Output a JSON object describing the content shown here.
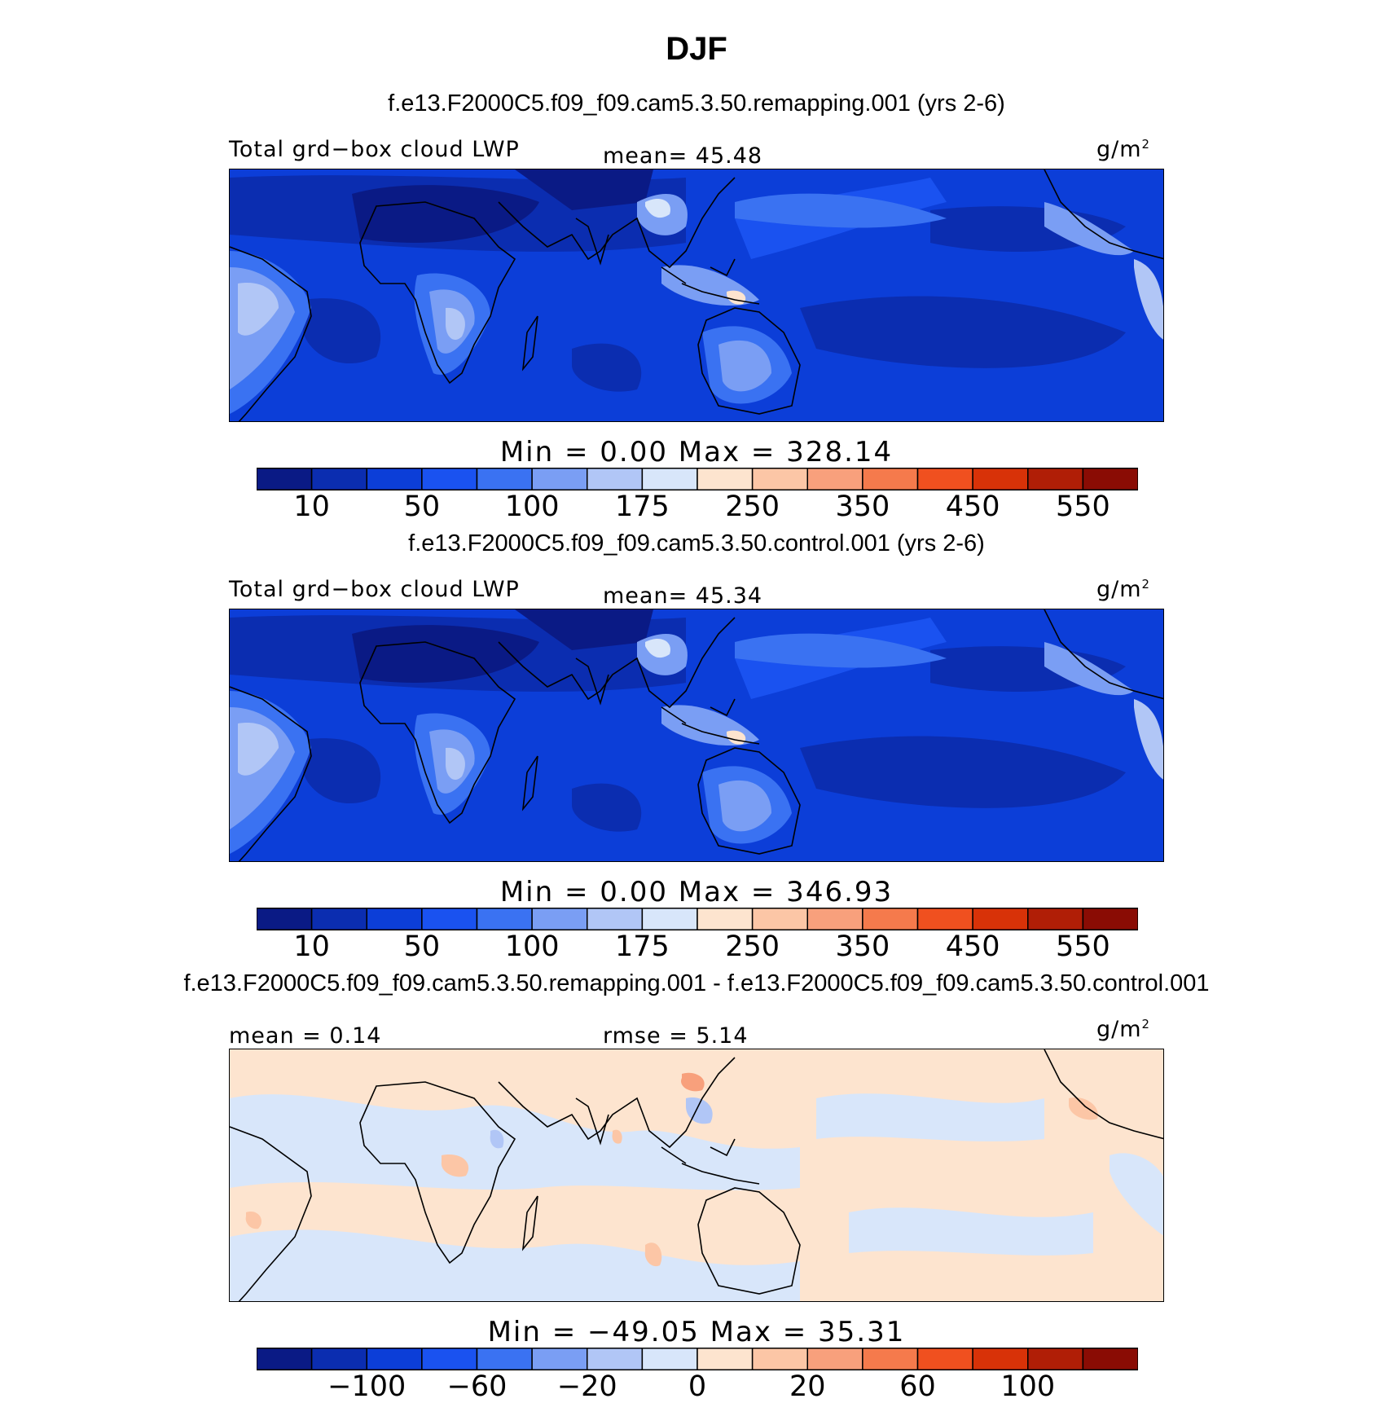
{
  "title": "DJF",
  "palette": [
    "#0a1a85",
    "#0b2db0",
    "#0c3ed8",
    "#1a52f0",
    "#3a72f2",
    "#7a9ef4",
    "#b1c6f6",
    "#d8e6fa",
    "#fde4cf",
    "#fcc6a6",
    "#f8a07c",
    "#f57a4c",
    "#f0501f",
    "#d83208",
    "#b01e06",
    "#8a0c04"
  ],
  "panels": [
    {
      "case_title": "f.e13.F2000C5.f09_f09.cam5.3.50.remapping.001 (yrs 2-6)",
      "left_label": "Total grd−box cloud LWP",
      "center_label": "mean=  45.48",
      "units_text": "g/m",
      "units_exp": "2",
      "minmax": "Min  =    0.00  Max  =  328.14",
      "colorbar_ticks": [
        "10",
        "50",
        "100",
        "175",
        "250",
        "350",
        "450",
        "550"
      ]
    },
    {
      "case_title": "f.e13.F2000C5.f09_f09.cam5.3.50.control.001 (yrs 2-6)",
      "left_label": "Total grd−box cloud LWP",
      "center_label": "mean=  45.34",
      "units_text": "g/m",
      "units_exp": "2",
      "minmax": "Min  =    0.00  Max  =  346.93",
      "colorbar_ticks": [
        "10",
        "50",
        "100",
        "175",
        "250",
        "350",
        "450",
        "550"
      ]
    },
    {
      "case_title": "f.e13.F2000C5.f09_f09.cam5.3.50.remapping.001 - f.e13.F2000C5.f09_f09.cam5.3.50.control.001",
      "left_label": "mean =    0.14",
      "center_label": "rmse =    5.14",
      "units_text": "g/m",
      "units_exp": "2",
      "minmax": "Min  = −49.05  Max  =   35.31",
      "colorbar_ticks": [
        "−100",
        "−60",
        "−20",
        "0",
        "20",
        "60",
        "100"
      ]
    }
  ],
  "chart_data": [
    {
      "type": "heatmap",
      "title": "f.e13.F2000C5.f09_f09.cam5.3.50.remapping.001 (yrs 2-6)",
      "variable": "Total grd-box cloud LWP",
      "units": "g/m2",
      "mean": 45.48,
      "min": 0.0,
      "max": 328.14,
      "levels": [
        10,
        25,
        50,
        75,
        100,
        150,
        175,
        200,
        250,
        300,
        350,
        400,
        450,
        500,
        550
      ]
    },
    {
      "type": "heatmap",
      "title": "f.e13.F2000C5.f09_f09.cam5.3.50.control.001 (yrs 2-6)",
      "variable": "Total grd-box cloud LWP",
      "units": "g/m2",
      "mean": 45.34,
      "min": 0.0,
      "max": 346.93,
      "levels": [
        10,
        25,
        50,
        75,
        100,
        150,
        175,
        200,
        250,
        300,
        350,
        400,
        450,
        500,
        550
      ]
    },
    {
      "type": "heatmap",
      "title": "f.e13.F2000C5.f09_f09.cam5.3.50.remapping.001 - f.e13.F2000C5.f09_f09.cam5.3.50.control.001",
      "units": "g/m2",
      "mean": 0.14,
      "rmse": 5.14,
      "min": -49.05,
      "max": 35.31,
      "levels": [
        -120,
        -100,
        -80,
        -60,
        -40,
        -20,
        -10,
        0,
        10,
        20,
        40,
        60,
        80,
        100,
        120
      ]
    }
  ]
}
